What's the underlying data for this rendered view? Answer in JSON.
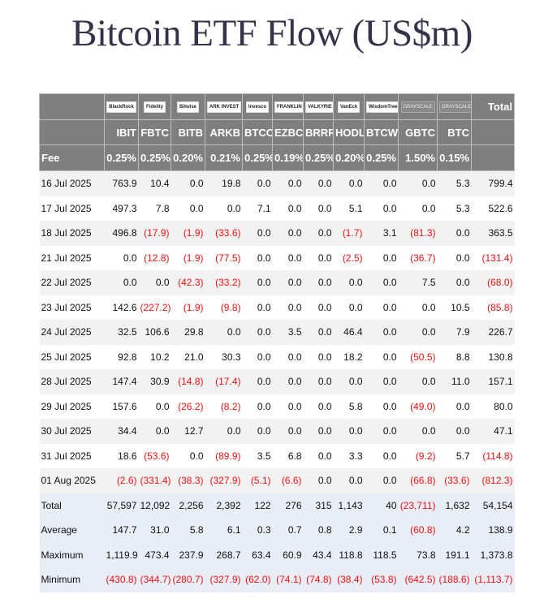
{
  "title": "Bitcoin ETF Flow (US$m)",
  "columns": [
    {
      "logo": "BlackRock",
      "ticker": "IBIT",
      "fee": "0.25%"
    },
    {
      "logo": "Fidelity",
      "ticker": "FBTC",
      "fee": "0.25%"
    },
    {
      "logo": "Bitwise",
      "ticker": "BITB",
      "fee": "0.20%"
    },
    {
      "logo": "ARK INVEST",
      "ticker": "ARKB",
      "fee": "0.21%"
    },
    {
      "logo": "Invesco",
      "ticker": "BTCO",
      "fee": "0.25%"
    },
    {
      "logo": "FRANKLIN TEMPLETON",
      "ticker": "EZBC",
      "fee": "0.19%"
    },
    {
      "logo": "VALKYRIE",
      "ticker": "BRRR",
      "fee": "0.25%"
    },
    {
      "logo": "VanEck",
      "ticker": "HODL",
      "fee": "0.20%"
    },
    {
      "logo": "WisdomTree",
      "ticker": "BTCW",
      "fee": "0.25%"
    },
    {
      "logo": "GRAYSCALE",
      "ticker": "GBTC",
      "fee": "1.50%"
    },
    {
      "logo": "GRAYSCALE",
      "ticker": "BTC",
      "fee": "0.15%"
    }
  ],
  "total_label": "Total",
  "fee_label": "Fee",
  "rows": [
    {
      "label": "16 Jul 2025",
      "values": [
        "763.9",
        "10.4",
        "0.0",
        "19.8",
        "0.0",
        "0.0",
        "0.0",
        "0.0",
        "0.0",
        "0.0",
        "5.3",
        "799.4"
      ]
    },
    {
      "label": "17 Jul 2025",
      "values": [
        "497.3",
        "7.8",
        "0.0",
        "0.0",
        "7.1",
        "0.0",
        "0.0",
        "5.1",
        "0.0",
        "0.0",
        "5.3",
        "522.6"
      ]
    },
    {
      "label": "18 Jul 2025",
      "values": [
        "496.8",
        "(17.9)",
        "(1.9)",
        "(33.6)",
        "0.0",
        "0.0",
        "0.0",
        "(1.7)",
        "3.1",
        "(81.3)",
        "0.0",
        "363.5"
      ]
    },
    {
      "label": "21 Jul 2025",
      "values": [
        "0.0",
        "(12.8)",
        "(1.9)",
        "(77.5)",
        "0.0",
        "0.0",
        "0.0",
        "(2.5)",
        "0.0",
        "(36.7)",
        "0.0",
        "(131.4)"
      ]
    },
    {
      "label": "22 Jul 2025",
      "values": [
        "0.0",
        "0.0",
        "(42.3)",
        "(33.2)",
        "0.0",
        "0.0",
        "0.0",
        "0.0",
        "0.0",
        "7.5",
        "0.0",
        "(68.0)"
      ]
    },
    {
      "label": "23 Jul 2025",
      "values": [
        "142.6",
        "(227.2)",
        "(1.9)",
        "(9.8)",
        "0.0",
        "0.0",
        "0.0",
        "0.0",
        "0.0",
        "0.0",
        "10.5",
        "(85.8)"
      ]
    },
    {
      "label": "24 Jul 2025",
      "values": [
        "32.5",
        "106.6",
        "29.8",
        "0.0",
        "0.0",
        "3.5",
        "0.0",
        "46.4",
        "0.0",
        "0.0",
        "7.9",
        "226.7"
      ]
    },
    {
      "label": "25 Jul 2025",
      "values": [
        "92.8",
        "10.2",
        "21.0",
        "30.3",
        "0.0",
        "0.0",
        "0.0",
        "18.2",
        "0.0",
        "(50.5)",
        "8.8",
        "130.8"
      ]
    },
    {
      "label": "28 Jul 2025",
      "values": [
        "147.4",
        "30.9",
        "(14.8)",
        "(17.4)",
        "0.0",
        "0.0",
        "0.0",
        "0.0",
        "0.0",
        "0.0",
        "11.0",
        "157.1"
      ]
    },
    {
      "label": "29 Jul 2025",
      "values": [
        "157.6",
        "0.0",
        "(26.2)",
        "(8.2)",
        "0.0",
        "0.0",
        "0.0",
        "5.8",
        "0.0",
        "(49.0)",
        "0.0",
        "80.0"
      ]
    },
    {
      "label": "30 Jul 2025",
      "values": [
        "34.4",
        "0.0",
        "12.7",
        "0.0",
        "0.0",
        "0.0",
        "0.0",
        "0.0",
        "0.0",
        "0.0",
        "0.0",
        "47.1"
      ]
    },
    {
      "label": "31 Jul 2025",
      "values": [
        "18.6",
        "(53.6)",
        "0.0",
        "(89.9)",
        "3.5",
        "6.8",
        "0.0",
        "3.3",
        "0.0",
        "(9.2)",
        "5.7",
        "(114.8)"
      ]
    },
    {
      "label": "01 Aug 2025",
      "values": [
        "(2.6)",
        "(331.4)",
        "(38.3)",
        "(327.9)",
        "(5.1)",
        "(6.6)",
        "0.0",
        "0.0",
        "0.0",
        "(66.8)",
        "(33.6)",
        "(812.3)"
      ]
    }
  ],
  "summary": [
    {
      "label": "Total",
      "values": [
        "57,597",
        "12,092",
        "2,256",
        "2,392",
        "122",
        "276",
        "315",
        "1,143",
        "40",
        "(23,711)",
        "1,632",
        "54,154"
      ]
    },
    {
      "label": "Average",
      "values": [
        "147.7",
        "31.0",
        "5.8",
        "6.1",
        "0.3",
        "0.7",
        "0.8",
        "2.9",
        "0.1",
        "(60.8)",
        "4.2",
        "138.9"
      ]
    },
    {
      "label": "Maximum",
      "values": [
        "1,119.9",
        "473.4",
        "237.9",
        "268.7",
        "63.4",
        "60.9",
        "43.4",
        "118.8",
        "118.5",
        "73.8",
        "191.1",
        "1,373.8"
      ]
    },
    {
      "label": "Minimum",
      "values": [
        "(430.8)",
        "(344.7)",
        "(280.7)",
        "(327.9)",
        "(62.0)",
        "(74.1)",
        "(74.8)",
        "(38.4)",
        "(53.8)",
        "(642.5)",
        "(188.6)",
        "(1,113.7)"
      ]
    }
  ]
}
